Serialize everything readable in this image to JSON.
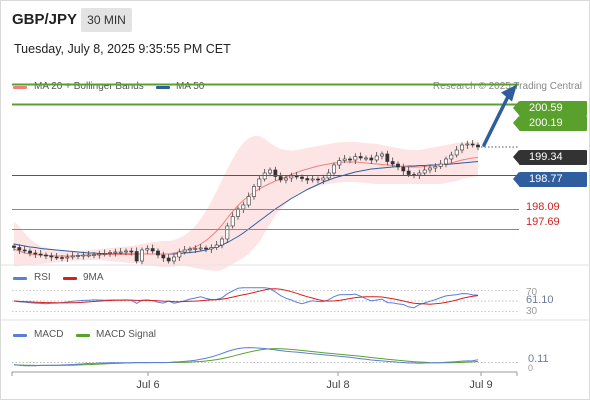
{
  "header": {
    "symbol": "GBP/JPY",
    "timeframe_label": "30 MIN",
    "datetime": "Tuesday, July 8, 2025 9:35:55 PM CET"
  },
  "legend": {
    "ma20_label": "MA 20 + Bollinger Bands",
    "ma50_label": "MA 50",
    "credit": "Research © 2025 Trading Central"
  },
  "colors": {
    "ma20": "#f08080",
    "ma50": "#2f5d9e",
    "bollinger_fill": "#fde0e0",
    "green_level": "#5aa02c",
    "blue_level": "#2f5d9e",
    "red_level": "#e06666",
    "current_price": "#333333",
    "rsi": "#5b7fd6",
    "rsi_ma": "#d62020",
    "macd": "#5b7fd6",
    "macd_signal": "#5aa02c",
    "arrow": "#2f5d9e"
  },
  "levels": {
    "r2": "200.59",
    "r1": "200.19",
    "current": "199.34",
    "pivot": "198.77",
    "s1": "198.09",
    "s2": "197.69"
  },
  "rsi_panel": {
    "rsi_label": "RSI",
    "ma_label": "9MA",
    "value": "61.10",
    "upper_label": "70",
    "lower_label": "30"
  },
  "macd_panel": {
    "macd_label": "MACD",
    "signal_label": "MACD Signal",
    "value": "0.11",
    "zero_label": "0"
  },
  "x_axis": {
    "labels": [
      "Jul 6",
      "Jul 8",
      "Jul 9"
    ]
  },
  "chart_data": {
    "type": "candlestick",
    "symbol": "GBP/JPY",
    "timeframe": "30 MIN",
    "ylim": [
      197.0,
      201.0
    ],
    "x_labels": [
      "Jul 6",
      "Jul 8",
      "Jul 9"
    ],
    "close": [
      197.33,
      197.28,
      197.26,
      197.22,
      197.2,
      197.18,
      197.16,
      197.14,
      197.13,
      197.12,
      197.14,
      197.16,
      197.17,
      197.18,
      197.18,
      197.19,
      197.2,
      197.21,
      197.23,
      197.24,
      197.24,
      197.26,
      197.25,
      197.06,
      197.28,
      197.31,
      197.26,
      197.18,
      197.12,
      197.06,
      197.14,
      197.24,
      197.28,
      197.3,
      197.31,
      197.32,
      197.3,
      197.33,
      197.38,
      197.5,
      197.76,
      197.95,
      198.1,
      198.18,
      198.35,
      198.55,
      198.7,
      198.82,
      198.88,
      198.75,
      198.68,
      198.72,
      198.76,
      198.74,
      198.71,
      198.68,
      198.7,
      198.68,
      198.72,
      198.82,
      198.98,
      199.07,
      199.1,
      199.08,
      199.15,
      199.12,
      199.12,
      199.08,
      199.16,
      199.2,
      199.05,
      199.0,
      198.94,
      198.86,
      198.79,
      198.78,
      198.82,
      198.88,
      198.92,
      198.95,
      199.0,
      199.1,
      199.18,
      199.28,
      199.38,
      199.4,
      199.38,
      199.34
    ],
    "series": [
      {
        "name": "MA 20",
        "values": [
          197.3,
          197.26,
          197.22,
          197.2,
          197.19,
          197.18,
          197.17,
          197.17,
          197.16,
          197.16,
          197.16,
          197.16,
          197.17,
          197.17,
          197.18,
          197.18,
          197.19,
          197.19,
          197.19,
          197.19,
          197.19,
          197.19,
          197.19,
          197.2,
          197.2,
          197.2,
          197.2,
          197.2,
          197.2,
          197.2,
          197.22,
          197.24,
          197.27,
          197.3,
          197.34,
          197.4,
          197.47,
          197.56,
          197.66,
          197.78,
          197.92,
          198.05,
          198.17,
          198.27,
          198.36,
          198.44,
          198.5,
          198.56,
          198.61,
          198.66,
          198.7,
          198.74,
          198.79,
          198.83,
          198.87,
          198.9,
          198.93,
          198.96,
          198.98,
          199.0,
          199.02,
          199.03,
          199.04,
          199.04,
          199.04,
          199.03,
          199.02,
          199.01,
          199.0,
          198.99,
          198.98,
          198.97,
          198.96,
          198.95,
          198.94,
          198.94,
          198.94,
          198.95,
          198.96,
          198.97,
          198.98,
          199.0,
          199.02,
          199.05,
          199.08,
          199.1,
          199.12,
          199.13
        ]
      },
      {
        "name": "MA 50",
        "values": [
          197.4,
          197.38,
          197.36,
          197.34,
          197.33,
          197.31,
          197.3,
          197.29,
          197.28,
          197.27,
          197.26,
          197.25,
          197.24,
          197.23,
          197.22,
          197.22,
          197.21,
          197.21,
          197.2,
          197.2,
          197.2,
          197.2,
          197.2,
          197.2,
          197.2,
          197.2,
          197.2,
          197.2,
          197.2,
          197.2,
          197.2,
          197.21,
          197.22,
          197.23,
          197.24,
          197.26,
          197.28,
          197.31,
          197.34,
          197.38,
          197.43,
          197.49,
          197.55,
          197.62,
          197.7,
          197.78,
          197.86,
          197.94,
          198.02,
          198.1,
          198.17,
          198.24,
          198.31,
          198.37,
          198.43,
          198.49,
          198.54,
          198.59,
          198.64,
          198.68,
          198.72,
          198.75,
          198.78,
          198.81,
          198.84,
          198.86,
          198.88,
          198.9,
          198.91,
          198.92,
          198.93,
          198.94,
          198.95,
          198.95,
          198.96,
          198.96,
          198.97,
          198.97,
          198.98,
          198.98,
          198.99,
          198.99,
          199.0,
          199.01,
          199.02,
          199.03,
          199.04,
          199.05
        ]
      }
    ],
    "bollinger_upper": [
      197.85,
      197.75,
      197.62,
      197.5,
      197.42,
      197.36,
      197.33,
      197.3,
      197.28,
      197.27,
      197.26,
      197.26,
      197.26,
      197.27,
      197.28,
      197.29,
      197.3,
      197.31,
      197.32,
      197.33,
      197.34,
      197.35,
      197.36,
      197.38,
      197.4,
      197.42,
      197.44,
      197.45,
      197.46,
      197.46,
      197.48,
      197.52,
      197.58,
      197.66,
      197.76,
      197.9,
      198.06,
      198.25,
      198.46,
      198.68,
      198.9,
      199.1,
      199.28,
      199.42,
      199.52,
      199.56,
      199.56,
      199.5,
      199.42,
      199.35,
      199.3,
      199.28,
      199.27,
      199.28,
      199.3,
      199.32,
      199.34,
      199.36,
      199.38,
      199.4,
      199.42,
      199.43,
      199.44,
      199.44,
      199.44,
      199.43,
      199.42,
      199.41,
      199.4,
      199.38,
      199.36,
      199.34,
      199.32,
      199.3,
      199.28,
      199.28,
      199.28,
      199.3,
      199.32,
      199.34,
      199.36,
      199.38,
      199.4,
      199.42,
      199.43,
      199.44,
      199.45,
      199.45
    ],
    "bollinger_lower": [
      196.95,
      196.96,
      196.97,
      196.98,
      196.99,
      197.0,
      197.01,
      197.02,
      197.03,
      197.04,
      197.05,
      197.06,
      197.07,
      197.07,
      197.08,
      197.08,
      197.08,
      197.07,
      197.06,
      197.05,
      197.04,
      197.03,
      197.02,
      197.02,
      197.0,
      196.98,
      196.96,
      196.95,
      196.94,
      196.94,
      196.95,
      196.96,
      196.96,
      196.94,
      196.92,
      196.9,
      196.88,
      196.87,
      196.86,
      196.88,
      196.94,
      197.0,
      197.06,
      197.12,
      197.2,
      197.32,
      197.44,
      197.62,
      197.8,
      197.97,
      198.1,
      198.2,
      198.3,
      198.38,
      198.44,
      198.48,
      198.52,
      198.56,
      198.58,
      198.6,
      198.62,
      198.63,
      198.64,
      198.64,
      198.64,
      198.63,
      198.62,
      198.61,
      198.6,
      198.6,
      198.6,
      198.6,
      198.6,
      198.6,
      198.6,
      198.6,
      198.6,
      198.6,
      198.6,
      198.6,
      198.6,
      198.62,
      198.64,
      198.66,
      198.7,
      198.72,
      198.74,
      198.76
    ],
    "rsi": {
      "name": "RSI",
      "value": 61.1,
      "upper": 70,
      "lower": 30
    },
    "rsi_ma": {
      "name": "9MA"
    },
    "macd": {
      "name": "MACD",
      "value": 0.11
    },
    "macd_signal": {
      "name": "MACD Signal"
    },
    "horizontal_levels": [
      200.59,
      200.19,
      199.34,
      198.77,
      198.09,
      197.69
    ]
  }
}
